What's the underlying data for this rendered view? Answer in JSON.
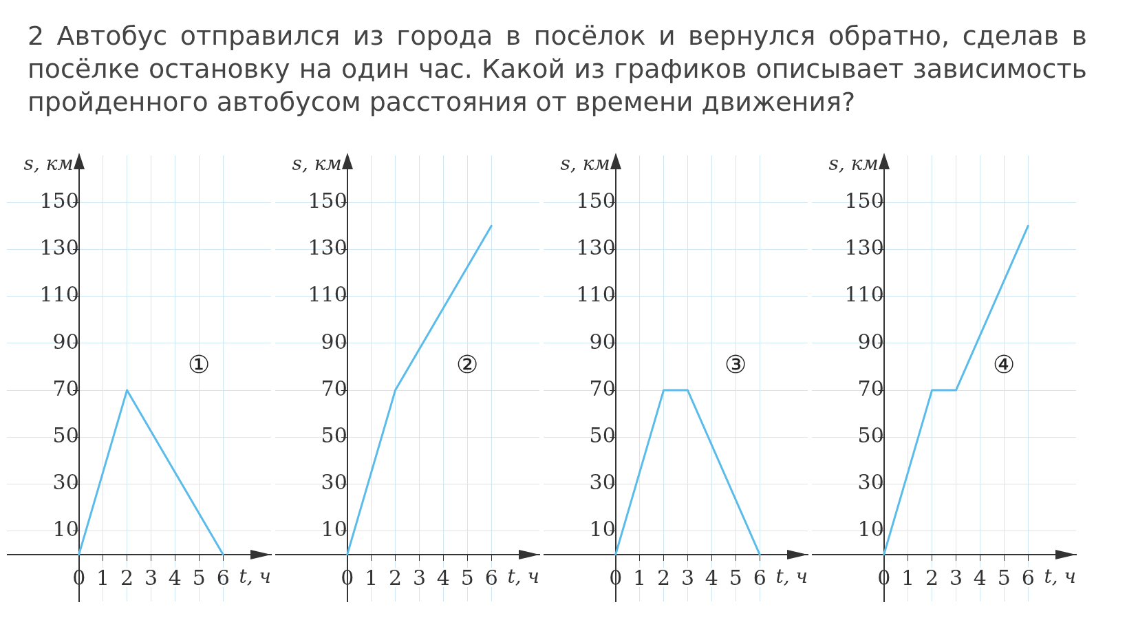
{
  "chart_data": [
    {
      "type": "line",
      "title": "2 Автобус отправился из города в посёлок и вернулся обратно, сделав в посёлке остановку на один час. Какой из графиков описывает зависимость пройденного автобусом расстояния от времени движения?",
      "annotations": [
        "①"
      ],
      "xlabel": "t, ч",
      "ylabel": "s, км",
      "x": [
        0,
        2,
        6
      ],
      "series": [
        {
          "color": "#5bbcea",
          "values": [
            0,
            70,
            0
          ]
        }
      ],
      "xlim": [
        -3,
        8
      ],
      "ylim": [
        -20,
        170
      ],
      "xticks": [
        0,
        1,
        2,
        3,
        4,
        5,
        6
      ],
      "yticks": [
        10,
        30,
        50,
        70,
        90,
        110,
        130,
        150
      ],
      "grid": true,
      "marker": "none"
    },
    {
      "type": "line",
      "annotations": [
        "②"
      ],
      "xlabel": "t, ч",
      "ylabel": "s, км",
      "x": [
        0,
        2,
        6
      ],
      "series": [
        {
          "color": "#5bbcea",
          "values": [
            0,
            70,
            140
          ]
        }
      ],
      "xlim": [
        -3,
        8
      ],
      "ylim": [
        -20,
        170
      ],
      "xticks": [
        0,
        1,
        2,
        3,
        4,
        5,
        6
      ],
      "yticks": [
        10,
        30,
        50,
        70,
        90,
        110,
        130,
        150
      ],
      "grid": true,
      "marker": "none"
    },
    {
      "type": "line",
      "annotations": [
        "③"
      ],
      "xlabel": "t, ч",
      "ylabel": "s, км",
      "x": [
        0,
        2,
        3,
        6
      ],
      "series": [
        {
          "color": "#5bbcea",
          "values": [
            0,
            70,
            70,
            0
          ]
        }
      ],
      "xlim": [
        -3,
        8
      ],
      "ylim": [
        -20,
        170
      ],
      "xticks": [
        0,
        1,
        2,
        3,
        4,
        5,
        6
      ],
      "yticks": [
        10,
        30,
        50,
        70,
        90,
        110,
        130,
        150
      ],
      "grid": true,
      "marker": "none"
    },
    {
      "type": "line",
      "annotations": [
        "④"
      ],
      "xlabel": "t, ч",
      "ylabel": "s, км",
      "x": [
        0,
        2,
        3,
        6
      ],
      "series": [
        {
          "color": "#5bbcea",
          "values": [
            0,
            70,
            70,
            140
          ]
        }
      ],
      "xlim": [
        -3,
        8
      ],
      "ylim": [
        -20,
        170
      ],
      "xticks": [
        0,
        1,
        2,
        3,
        4,
        5,
        6
      ],
      "yticks": [
        10,
        30,
        50,
        70,
        90,
        110,
        130,
        150
      ],
      "grid": true,
      "marker": "none"
    }
  ]
}
